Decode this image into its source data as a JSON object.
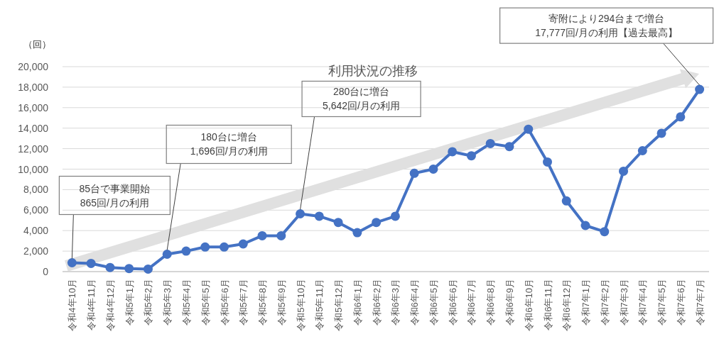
{
  "chart_data": {
    "type": "line",
    "title": "利用状況の推移",
    "ylabel": "（回）",
    "categories": [
      "令和4年10月",
      "令和4年11月",
      "令和4年12月",
      "令和5年1月",
      "令和5年2月",
      "令和5年3月",
      "令和5年4月",
      "令和5年5月",
      "令和5年6月",
      "令和5年7月",
      "令和5年8月",
      "令和5年9月",
      "令和5年10月",
      "令和5年11月",
      "令和5年12月",
      "令和6年1月",
      "令和6年2月",
      "令和6年3月",
      "令和6年4月",
      "令和6年5月",
      "令和6年6月",
      "令和6年7月",
      "令和6年8月",
      "令和6年9月",
      "令和6年10月",
      "令和6年11月",
      "令和6年12月",
      "令和7年1月",
      "令和7年2月",
      "令和7年3月",
      "令和7年4月",
      "令和7年5月",
      "令和7年6月",
      "令和7年7月"
    ],
    "series": [
      {
        "color": "#4472c4",
        "values": [
          865,
          800,
          400,
          300,
          250,
          1696,
          2000,
          2400,
          2400,
          2700,
          3500,
          3500,
          5642,
          5400,
          4800,
          3800,
          4800,
          5400,
          9600,
          10000,
          11700,
          11300,
          12500,
          12200,
          13900,
          10700,
          6900,
          4500,
          3900,
          9800,
          11800,
          13500,
          15100,
          17777
        ]
      }
    ],
    "ylim": [
      0,
      20000
    ],
    "yticks": [
      0,
      {
        "value": 2000,
        "label": "2,000"
      },
      {
        "value": 4000,
        "label": "4,000"
      },
      {
        "value": 6000,
        "label": "6,000"
      },
      {
        "value": 8000,
        "label": "8,000"
      },
      {
        "value": 10000,
        "label": "10,000"
      },
      {
        "value": 12000,
        "label": "12,000"
      },
      {
        "value": 14000,
        "label": "14,000"
      },
      {
        "value": 16000,
        "label": "16,000"
      },
      {
        "value": 18000,
        "label": "18,000"
      },
      {
        "value": 20000,
        "label": "20,000"
      }
    ],
    "grid": "y",
    "marker": "circle",
    "line_style": "solid",
    "annotations": [
      {
        "text": "85台で事業開始\n865回/月の利用",
        "x": "令和4年10月",
        "y": 865
      },
      {
        "text": "180台に増台\n1,696回/月の利用",
        "x": "令和5年3月",
        "y": 1696
      },
      {
        "text": "280台に増台\n5,642回/月の利用",
        "x": "令和5年10月",
        "y": 5642
      },
      {
        "text": "寄附により294台まで増台\n17,777回/月の利用【過去最高】",
        "x": "令和7年7月",
        "y": 17777
      }
    ]
  }
}
